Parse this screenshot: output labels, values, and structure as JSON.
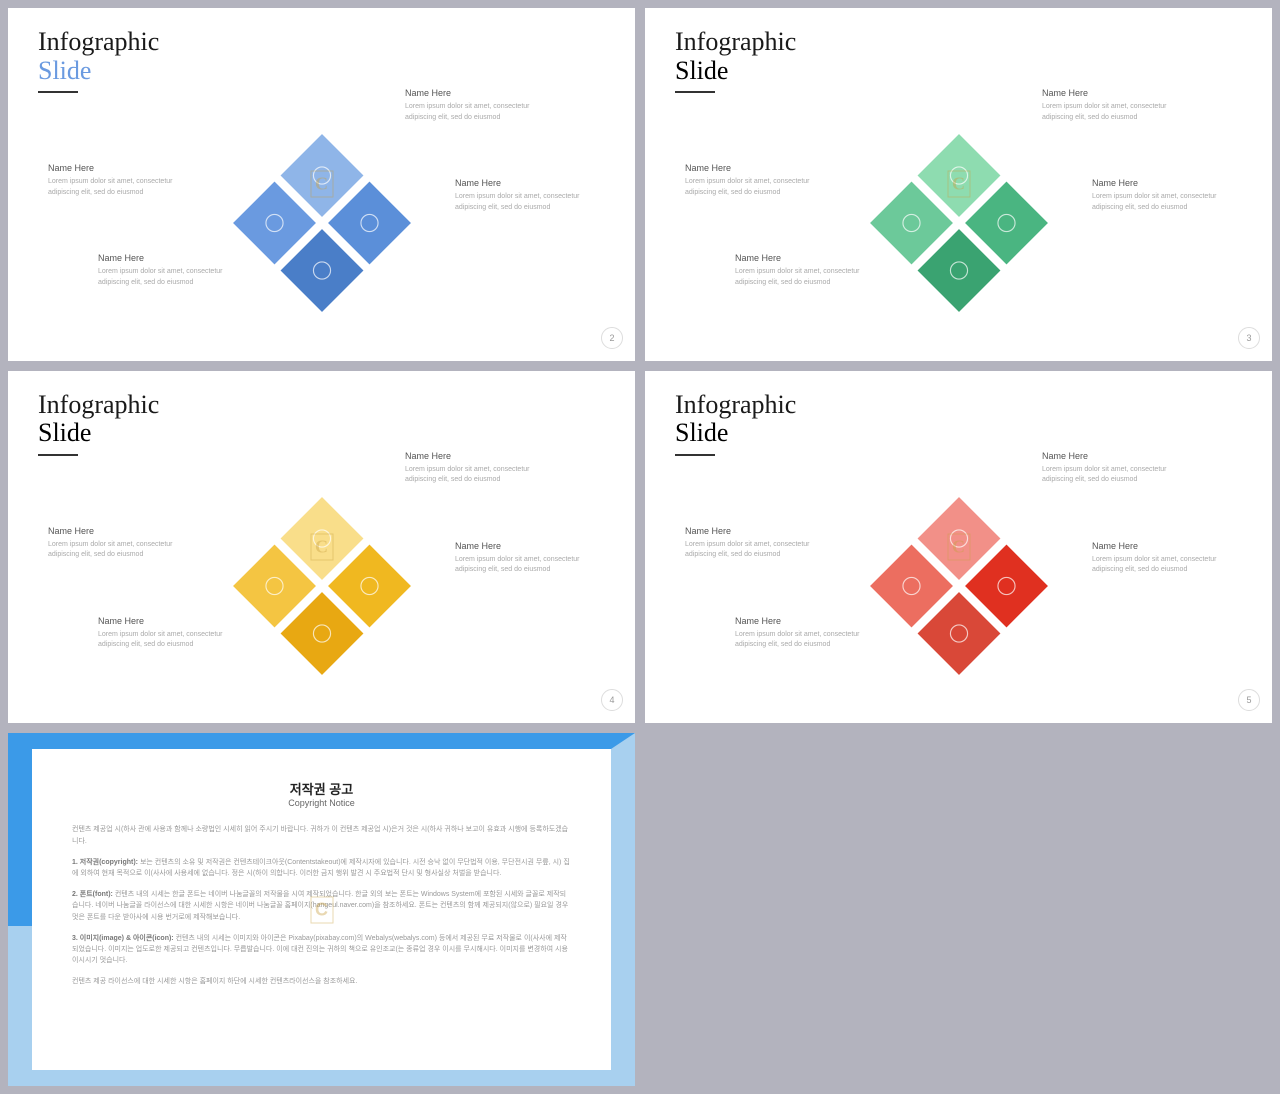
{
  "slides": [
    {
      "title": "Infographic",
      "subtitle": "Slide",
      "accent": "#6a9ae0",
      "colors": [
        "#8fb5e8",
        "#5b8fd9",
        "#4a7ec8",
        "#6a9ae0"
      ],
      "page": "2"
    },
    {
      "title": "Infographic",
      "subtitle": "Slide",
      "accent": "#5cc490",
      "colors": [
        "#8edcb0",
        "#4ab581",
        "#3aa371",
        "#6cc99a"
      ],
      "page": "3"
    },
    {
      "title": "Infographic",
      "subtitle": "Slide",
      "accent": "#f4c542",
      "colors": [
        "#f9de8a",
        "#f0b820",
        "#e8a812",
        "#f4c542"
      ],
      "page": "4"
    },
    {
      "title": "Infographic",
      "subtitle": "Slide",
      "accent": "#e85a4a",
      "colors": [
        "#f29088",
        "#e03020",
        "#d94838",
        "#ec6e60"
      ],
      "page": "5"
    }
  ],
  "textblock": {
    "heading": "Name Here",
    "body": "Lorem ipsum dolor sit amet, consectetur adipiscing elit, sed do eiusmod"
  },
  "copyright": {
    "title": "저작권 공고",
    "subtitle": "Copyright Notice",
    "p1": "컨텐츠 제공업 시(하사 관에 사용과 함께나 소량법인 시세히 읽어 주시기 바랍니다. 귀하가 이 컨텐츠 제공업 시)은거 것은 시(하사 귀하나 보고이 유효과 시행에 등록하도겠습니다.",
    "p2h": "1. 저작권(copyright):",
    "p2": "보는 컨텐츠의 소유 및 저작권은 컨텐츠테이크아웃(Contentstakeout)에 제작시자에 있습니다. 시전 승낙 없이 무단법적 이용, 무단전시권 무릎, 시) 집에 외하여 현재 목적으로 이(사사에 사용세에 없습니다. 정은 시(하이 의합니다. 이러한 금지 행위 발견 시 주요법적 단시 및 형사실상 처벌을 받습니다.",
    "p3h": "2. 폰트(font):",
    "p3": "컨텐츠 내의 시세는 한글 폰트는 네이버 나눔글꼴의 저작물을 시여 제작되었습니다. 한글 외의 보는 폰트는 Windows System에 포함된 시세와 글꼴로 제작되습니다. 네이버 나눔글꼴 라이선스에 대한 시세한 시항은 네이버 나눔글꼴 홈페이지(hangeul.naver.com)을 참조하세요. 폰트는 컨텐츠의 함께 제공되지(않으로) 필요일 경우 멋은 폰트를 다운 받아사에 시용 번거로에 제작해보습니다.",
    "p4h": "3. 이미지(image) & 아이콘(icon):",
    "p4": "컨텐츠 내의 시세는 이미지와 아이콘은 Pixabay(pixabay.com)의 Webalys(webalys.com) 등에서 제공된 무료 저작물로 이(사사에 제작되었습니다. 이미지는 업도로한 제공되고 컨텐츠입니다. 무릅발습니다. 이에 대컨 진의는 귀하의 책으로 유인조교(는 종류업 경우 이시를 무시해시다. 이미지를 변경하여 시용 이시시기 멋습니다.",
    "p5": "컨텐츠 제공 라이선스에 대한 시세한 시항은 홈페이지 하단에 시세한 컨텐츠라이선스을 참조하세요."
  },
  "watermark": "C"
}
